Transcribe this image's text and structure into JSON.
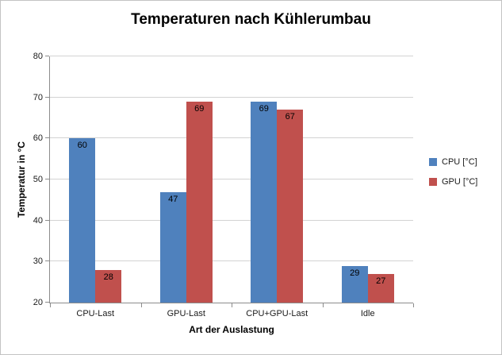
{
  "chart_data": {
    "type": "bar",
    "title": "Temperaturen nach Kühlerumbau",
    "xlabel": "Art der Auslastung",
    "ylabel": "Temperatur in °C",
    "ylim": [
      20,
      80
    ],
    "yticks": [
      20,
      30,
      40,
      50,
      60,
      70,
      80
    ],
    "categories": [
      "CPU-Last",
      "GPU-Last",
      "CPU+GPU-Last",
      "Idle"
    ],
    "series": [
      {
        "name": "CPU [°C]",
        "color": "#4F81BD",
        "values": [
          60,
          47,
          69,
          29
        ]
      },
      {
        "name": "GPU [°C]",
        "color": "#C0504D",
        "values": [
          28,
          69,
          67,
          27
        ]
      }
    ],
    "legend_position": "right",
    "grid": true,
    "data_labels": true
  }
}
